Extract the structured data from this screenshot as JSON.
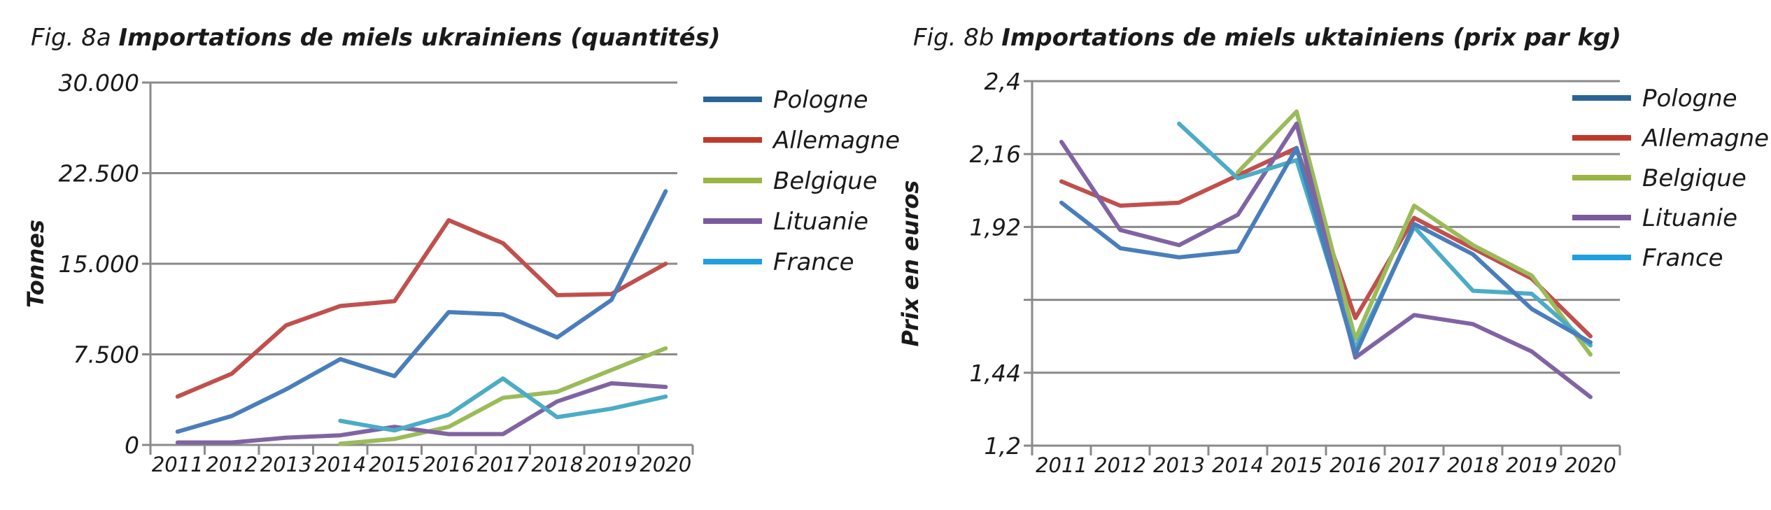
{
  "chart_data": [
    {
      "type": "line",
      "fig_label": "Fig. 8a",
      "title": "Importations de miels ukrainiens  (quantités)",
      "xlabel": "",
      "ylabel": "Tonnes",
      "categories": [
        "2011",
        "2012",
        "2013",
        "2014",
        "2015",
        "2016",
        "2017",
        "2018",
        "2019",
        "2020"
      ],
      "ylim": [
        0,
        30000
      ],
      "yticks": [
        0,
        7500,
        15000,
        22500,
        30000
      ],
      "ytick_labels": [
        "0",
        "7.500",
        "15.000",
        "22.500",
        "30.000"
      ],
      "grid": true,
      "legend_position": "right",
      "series": [
        {
          "name": "Pologne",
          "color": "#4a7ebb",
          "legend_color": "#2a6496",
          "values": [
            1100,
            2400,
            4600,
            7100,
            5700,
            11000,
            10800,
            8900,
            12000,
            21000
          ]
        },
        {
          "name": "Allemagne",
          "color": "#c0504d",
          "legend_color": "#c0392b",
          "values": [
            4000,
            5900,
            9900,
            11500,
            11900,
            18600,
            16700,
            12400,
            12500,
            15000
          ]
        },
        {
          "name": "Belgique",
          "color": "#9bbb59",
          "legend_color": "#9bb545",
          "values": [
            null,
            null,
            null,
            100,
            500,
            1500,
            3900,
            4400,
            6200,
            8000
          ]
        },
        {
          "name": "Lituanie",
          "color": "#8064a2",
          "legend_color": "#7a5a9e",
          "values": [
            200,
            200,
            600,
            800,
            1500,
            900,
            900,
            3600,
            5100,
            4800
          ]
        },
        {
          "name": "France",
          "color": "#4bacc6",
          "legend_color": "#1f9fe0",
          "values": [
            null,
            null,
            null,
            2000,
            1200,
            2500,
            5500,
            2300,
            3000,
            4000
          ]
        }
      ]
    },
    {
      "type": "line",
      "fig_label": "Fig. 8b",
      "title": "Importations de miels uktainiens (prix par kg)",
      "xlabel": "",
      "ylabel": "Prix en euros",
      "categories": [
        "2011",
        "2012",
        "2013",
        "2014",
        "2015",
        "2016",
        "2017",
        "2018",
        "2019",
        "2020"
      ],
      "ylim": [
        1.2,
        2.4
      ],
      "yticks": [
        1.2,
        1.44,
        1.68,
        1.92,
        2.16,
        2.4
      ],
      "ytick_labels": [
        "1,2",
        "1,44",
        "",
        "1,92",
        "2,16",
        "2,4"
      ],
      "grid": true,
      "legend_position": "right",
      "series": [
        {
          "name": "Pologne",
          "color": "#4a7ebb",
          "legend_color": "#2a6496",
          "values": [
            2.0,
            1.85,
            1.82,
            1.84,
            2.18,
            1.5,
            1.93,
            1.83,
            1.65,
            1.54
          ]
        },
        {
          "name": "Allemagne",
          "color": "#c0504d",
          "legend_color": "#c0392b",
          "values": [
            2.07,
            1.99,
            2.0,
            2.09,
            2.18,
            1.62,
            1.95,
            1.85,
            1.75,
            1.56
          ]
        },
        {
          "name": "Belgique",
          "color": "#9bbb59",
          "legend_color": "#9bb545",
          "values": [
            null,
            null,
            null,
            2.1,
            2.3,
            1.55,
            1.99,
            1.86,
            1.76,
            1.5
          ]
        },
        {
          "name": "Lituanie",
          "color": "#8064a2",
          "legend_color": "#7a5a9e",
          "values": [
            2.2,
            1.91,
            1.86,
            1.96,
            2.26,
            1.49,
            1.63,
            1.6,
            1.51,
            1.36
          ]
        },
        {
          "name": "France",
          "color": "#4bacc6",
          "legend_color": "#1f9fe0",
          "values": [
            null,
            null,
            2.26,
            2.08,
            2.14,
            1.52,
            1.92,
            1.71,
            1.7,
            1.53
          ]
        }
      ]
    }
  ]
}
